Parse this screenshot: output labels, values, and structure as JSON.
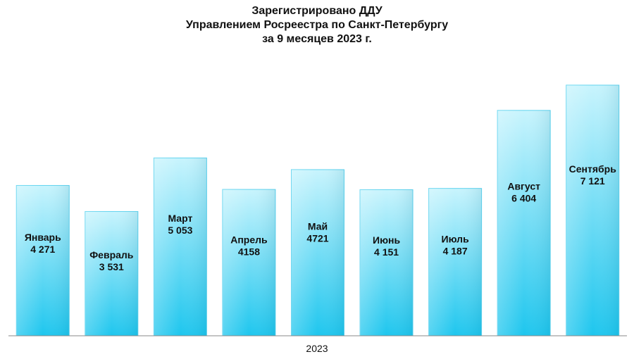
{
  "chart_data": {
    "type": "bar",
    "title_lines": [
      "Зарегистрировано ДДУ",
      "Управлением Росреестра по Санкт-Петербургу",
      "за 9 месяцев 2023 г."
    ],
    "xlabel": "2023",
    "ylabel": "",
    "ylim": [
      0,
      7500
    ],
    "categories": [
      "Январь",
      "Февраль",
      "Март",
      "Апрель",
      "Май",
      "Июнь",
      "Июль",
      "Август",
      "Сентябрь"
    ],
    "values": [
      4271,
      3531,
      5053,
      4158,
      4721,
      4151,
      4187,
      6404,
      7121
    ],
    "value_labels": [
      "4 271",
      "3 531",
      "5 053",
      "4158",
      "4721",
      "4 151",
      "4 187",
      "6 404",
      "7 121"
    ],
    "colors": {
      "bar_top": "#c8f4fd",
      "bar_bottom": "#1ec6ee",
      "bar_edge": "#5fd3ef"
    }
  }
}
